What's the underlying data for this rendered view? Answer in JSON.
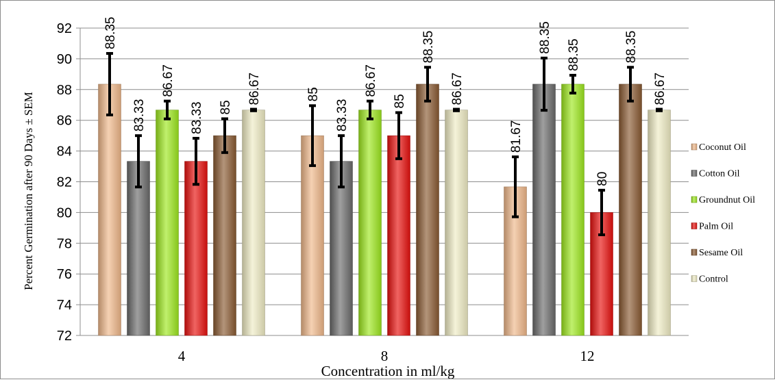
{
  "chart_data": {
    "type": "bar",
    "title": "",
    "xlabel": "Concentration  in ml/kg",
    "ylabel": "Percent Germination after 90 Days   ± SEM",
    "ylim": [
      72,
      92
    ],
    "yticks": [
      72,
      74,
      76,
      78,
      80,
      82,
      84,
      86,
      88,
      90,
      92
    ],
    "grid": true,
    "legend_position": "right",
    "categories": [
      "4",
      "8",
      "12"
    ],
    "series": [
      {
        "name": "Coconut Oil",
        "color": "#f0b88a",
        "values": [
          88.35,
          85,
          81.67
        ],
        "sem": [
          2.0,
          1.95,
          1.95
        ],
        "labels": [
          "88.35",
          "85",
          "81.67"
        ]
      },
      {
        "name": "Cotton Oil",
        "color": "#6b6b6b",
        "values": [
          83.33,
          83.33,
          88.35
        ],
        "sem": [
          1.67,
          1.67,
          1.7
        ],
        "labels": [
          "83.33",
          "83.33",
          "88.35"
        ]
      },
      {
        "name": "Groundnut Oil",
        "color": "#9ee81e",
        "values": [
          86.67,
          86.67,
          88.35
        ],
        "sem": [
          0.58,
          0.58,
          0.58
        ],
        "labels": [
          "86.67",
          "86.67",
          "88.35"
        ]
      },
      {
        "name": "Palm  Oil",
        "color": "#e8100e",
        "values": [
          83.33,
          85,
          80
        ],
        "sem": [
          1.5,
          1.5,
          1.45
        ],
        "labels": [
          "83.33",
          "85",
          "80"
        ]
      },
      {
        "name": "Sesame Oil",
        "color": "#8a5a32",
        "values": [
          85,
          88.35,
          88.35
        ],
        "sem": [
          1.1,
          1.1,
          1.1
        ],
        "labels": [
          "85",
          "88.35",
          "88.35"
        ]
      },
      {
        "name": "Control",
        "color": "#f0ecc4",
        "values": [
          86.67,
          86.67,
          86.67
        ],
        "sem": [
          0.05,
          0.05,
          0.05
        ],
        "labels": [
          "86.67",
          "86.67",
          "86.67"
        ]
      }
    ]
  }
}
